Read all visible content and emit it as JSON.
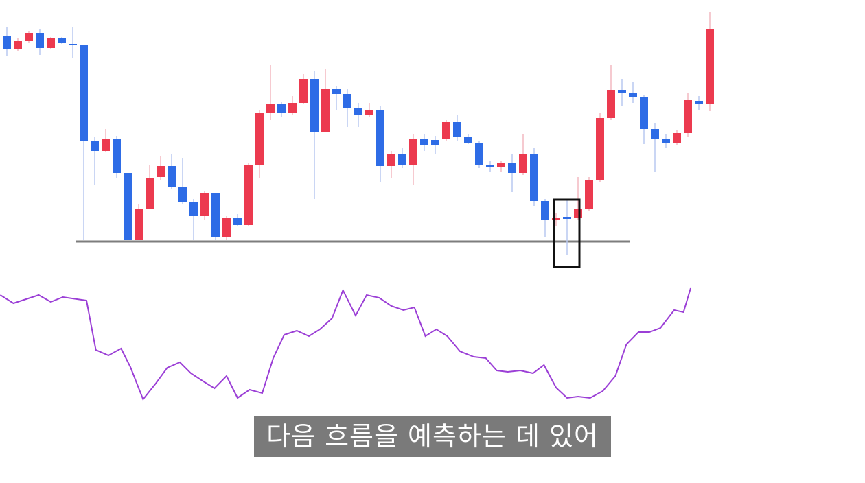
{
  "chart_data": {
    "type": "candlestick",
    "up_color": "#ec3a4f",
    "down_color": "#2e6ce6",
    "xlim": [
      -0.625,
      78.125
    ],
    "ylim": [
      -20,
      350
    ],
    "open": [
      308,
      288,
      300,
      312,
      290,
      305,
      296,
      295,
      155,
      140,
      158,
      108,
      10,
      55,
      102,
      118,
      88,
      65,
      45,
      78,
      15,
      42,
      32,
      120,
      195,
      208,
      195,
      210,
      245,
      168,
      230,
      223,
      202,
      192,
      200,
      118,
      135,
      120,
      158,
      156,
      158,
      182,
      160,
      152,
      120,
      116,
      122,
      108,
      135,
      67,
      41,
      43,
      42,
      56,
      98,
      188,
      229,
      225,
      219,
      172,
      157,
      152,
      166,
      213,
      208
    ],
    "high": [
      320,
      305,
      315,
      318,
      306,
      306,
      320,
      295,
      160,
      172,
      162,
      108,
      62,
      120,
      132,
      135,
      130,
      70,
      82,
      78,
      45,
      48,
      122,
      200,
      265,
      212,
      220,
      252,
      257,
      260,
      235,
      230,
      210,
      210,
      205,
      140,
      145,
      165,
      165,
      162,
      185,
      192,
      165,
      155,
      125,
      125,
      135,
      165,
      145,
      70,
      50,
      68,
      102,
      102,
      195,
      265,
      245,
      240,
      222,
      180,
      165,
      170,
      225,
      220,
      342
    ],
    "low": [
      278,
      285,
      298,
      280,
      289,
      296,
      275,
      10,
      90,
      138,
      100,
      10,
      10,
      55,
      98,
      85,
      62,
      10,
      40,
      10,
      10,
      30,
      30,
      100,
      185,
      190,
      192,
      208,
      70,
      168,
      200,
      175,
      175,
      190,
      95,
      100,
      115,
      90,
      140,
      135,
      155,
      155,
      150,
      115,
      110,
      110,
      80,
      105,
      60,
      15,
      30,
      -12,
      40,
      52,
      95,
      185,
      205,
      210,
      150,
      110,
      145,
      148,
      160,
      200,
      198
    ],
    "close": [
      288,
      300,
      312,
      290,
      305,
      297,
      295,
      155,
      140,
      158,
      108,
      10,
      55,
      100,
      118,
      88,
      65,
      45,
      78,
      15,
      42,
      32,
      120,
      195,
      208,
      195,
      210,
      245,
      168,
      230,
      223,
      202,
      192,
      200,
      118,
      135,
      120,
      158,
      148,
      148,
      182,
      160,
      152,
      120,
      116,
      122,
      108,
      135,
      67,
      40,
      42,
      42,
      56,
      98,
      188,
      229,
      225,
      219,
      172,
      157,
      152,
      166,
      214,
      208,
      318
    ],
    "oscillator": {
      "color": "#9b3fd6",
      "ylim": [
        0,
        200
      ],
      "x": [
        -0.6,
        0.6,
        2.9,
        4,
        5.1,
        7.25,
        8.1,
        9.25,
        10.4,
        11.25,
        12.4,
        13.6,
        14.6,
        15.75,
        16.75,
        17.9,
        18.9,
        20,
        21,
        22.1,
        23.25,
        24.25,
        25.25,
        26.4,
        27.5,
        28.5,
        29.6,
        30.6,
        31.75,
        32.75,
        33.9,
        35,
        36.1,
        37.1,
        38.1,
        39.1,
        40.1,
        41.25,
        42.5,
        43.6,
        44.6,
        45.6,
        46.75,
        47.9,
        48.9,
        50,
        51,
        52,
        53.1,
        54.25,
        55.4,
        56.4,
        57.5,
        58.5,
        59.5,
        60.75,
        61.6,
        62.25
      ],
      "values": [
        170,
        158,
        170,
        160,
        167,
        162,
        90,
        82,
        92,
        65,
        18,
        42,
        64,
        72,
        56,
        44,
        34,
        52,
        20,
        32,
        27,
        78,
        112,
        118,
        110,
        120,
        136,
        177,
        140,
        170,
        166,
        154,
        148,
        152,
        110,
        120,
        110,
        88,
        80,
        78,
        60,
        58,
        60,
        56,
        68,
        35,
        20,
        22,
        20,
        30,
        52,
        98,
        116,
        116,
        122,
        148,
        145,
        180
      ]
    },
    "subtitle": "다음 흐름을 예측하는 데 있어"
  }
}
